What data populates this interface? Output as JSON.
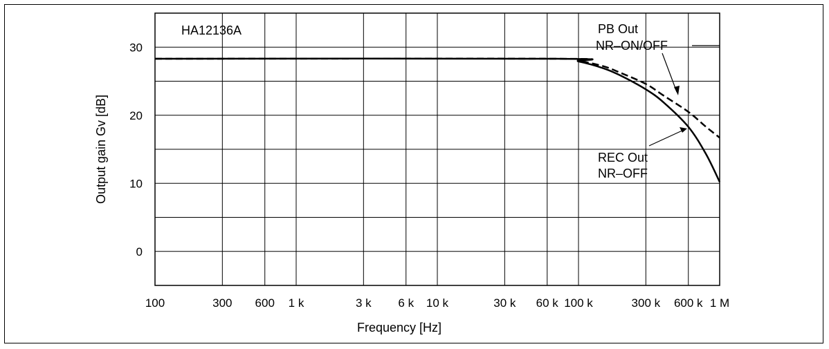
{
  "chart_data": {
    "type": "line",
    "xlabel": "Frequency [Hz]",
    "ylabel": "Output gain Gv [dB]",
    "x_scale": "log",
    "xlim": [
      100,
      1000000
    ],
    "ylim": [
      -5,
      35
    ],
    "grid": true,
    "x_ticks": [
      {
        "value": 100,
        "label": "100"
      },
      {
        "value": 300,
        "label": "300"
      },
      {
        "value": 600,
        "label": "600"
      },
      {
        "value": 1000,
        "label": "1 k"
      },
      {
        "value": 3000,
        "label": "3 k"
      },
      {
        "value": 6000,
        "label": "6 k"
      },
      {
        "value": 10000,
        "label": "10 k"
      },
      {
        "value": 30000,
        "label": "30 k"
      },
      {
        "value": 60000,
        "label": "60 k"
      },
      {
        "value": 100000,
        "label": "100 k"
      },
      {
        "value": 300000,
        "label": "300 k"
      },
      {
        "value": 600000,
        "label": "600 k"
      },
      {
        "value": 1000000,
        "label": "1 M"
      }
    ],
    "y_ticks": [
      {
        "value": 30,
        "label": "30"
      },
      {
        "value": 20,
        "label": "20"
      },
      {
        "value": 10,
        "label": "10"
      },
      {
        "value": 0,
        "label": "0"
      }
    ],
    "y_grid": [
      35,
      30,
      25,
      20,
      15,
      10,
      5,
      0,
      -5
    ],
    "series": [
      {
        "name": "PB Out NR–ON/OFF",
        "style": "dashed",
        "color": "#000000",
        "points": [
          [
            100,
            28.3
          ],
          [
            70000,
            28.3
          ],
          [
            100000,
            28.0
          ],
          [
            150000,
            27.2
          ],
          [
            200000,
            26.2
          ],
          [
            300000,
            24.6
          ],
          [
            400000,
            22.9
          ],
          [
            600000,
            20.5
          ],
          [
            800000,
            18.3
          ],
          [
            1000000,
            16.7
          ]
        ]
      },
      {
        "name": "REC Out NR–OFF",
        "style": "solid",
        "color": "#000000",
        "points": [
          [
            100,
            28.3
          ],
          [
            70000,
            28.3
          ],
          [
            100000,
            27.9
          ],
          [
            150000,
            26.9
          ],
          [
            200000,
            25.8
          ],
          [
            300000,
            23.8
          ],
          [
            400000,
            21.9
          ],
          [
            600000,
            18.3
          ],
          [
            800000,
            14.3
          ],
          [
            1000000,
            10.2
          ]
        ]
      }
    ],
    "annotations": [
      {
        "id": "device",
        "text": "HA12136A"
      },
      {
        "id": "pb_line1",
        "text": "PB Out"
      },
      {
        "id": "pb_line2",
        "text": "NR–ON/OFF"
      },
      {
        "id": "rec_line1",
        "text": "REC Out"
      },
      {
        "id": "rec_line2",
        "text": "NR–OFF"
      }
    ]
  }
}
